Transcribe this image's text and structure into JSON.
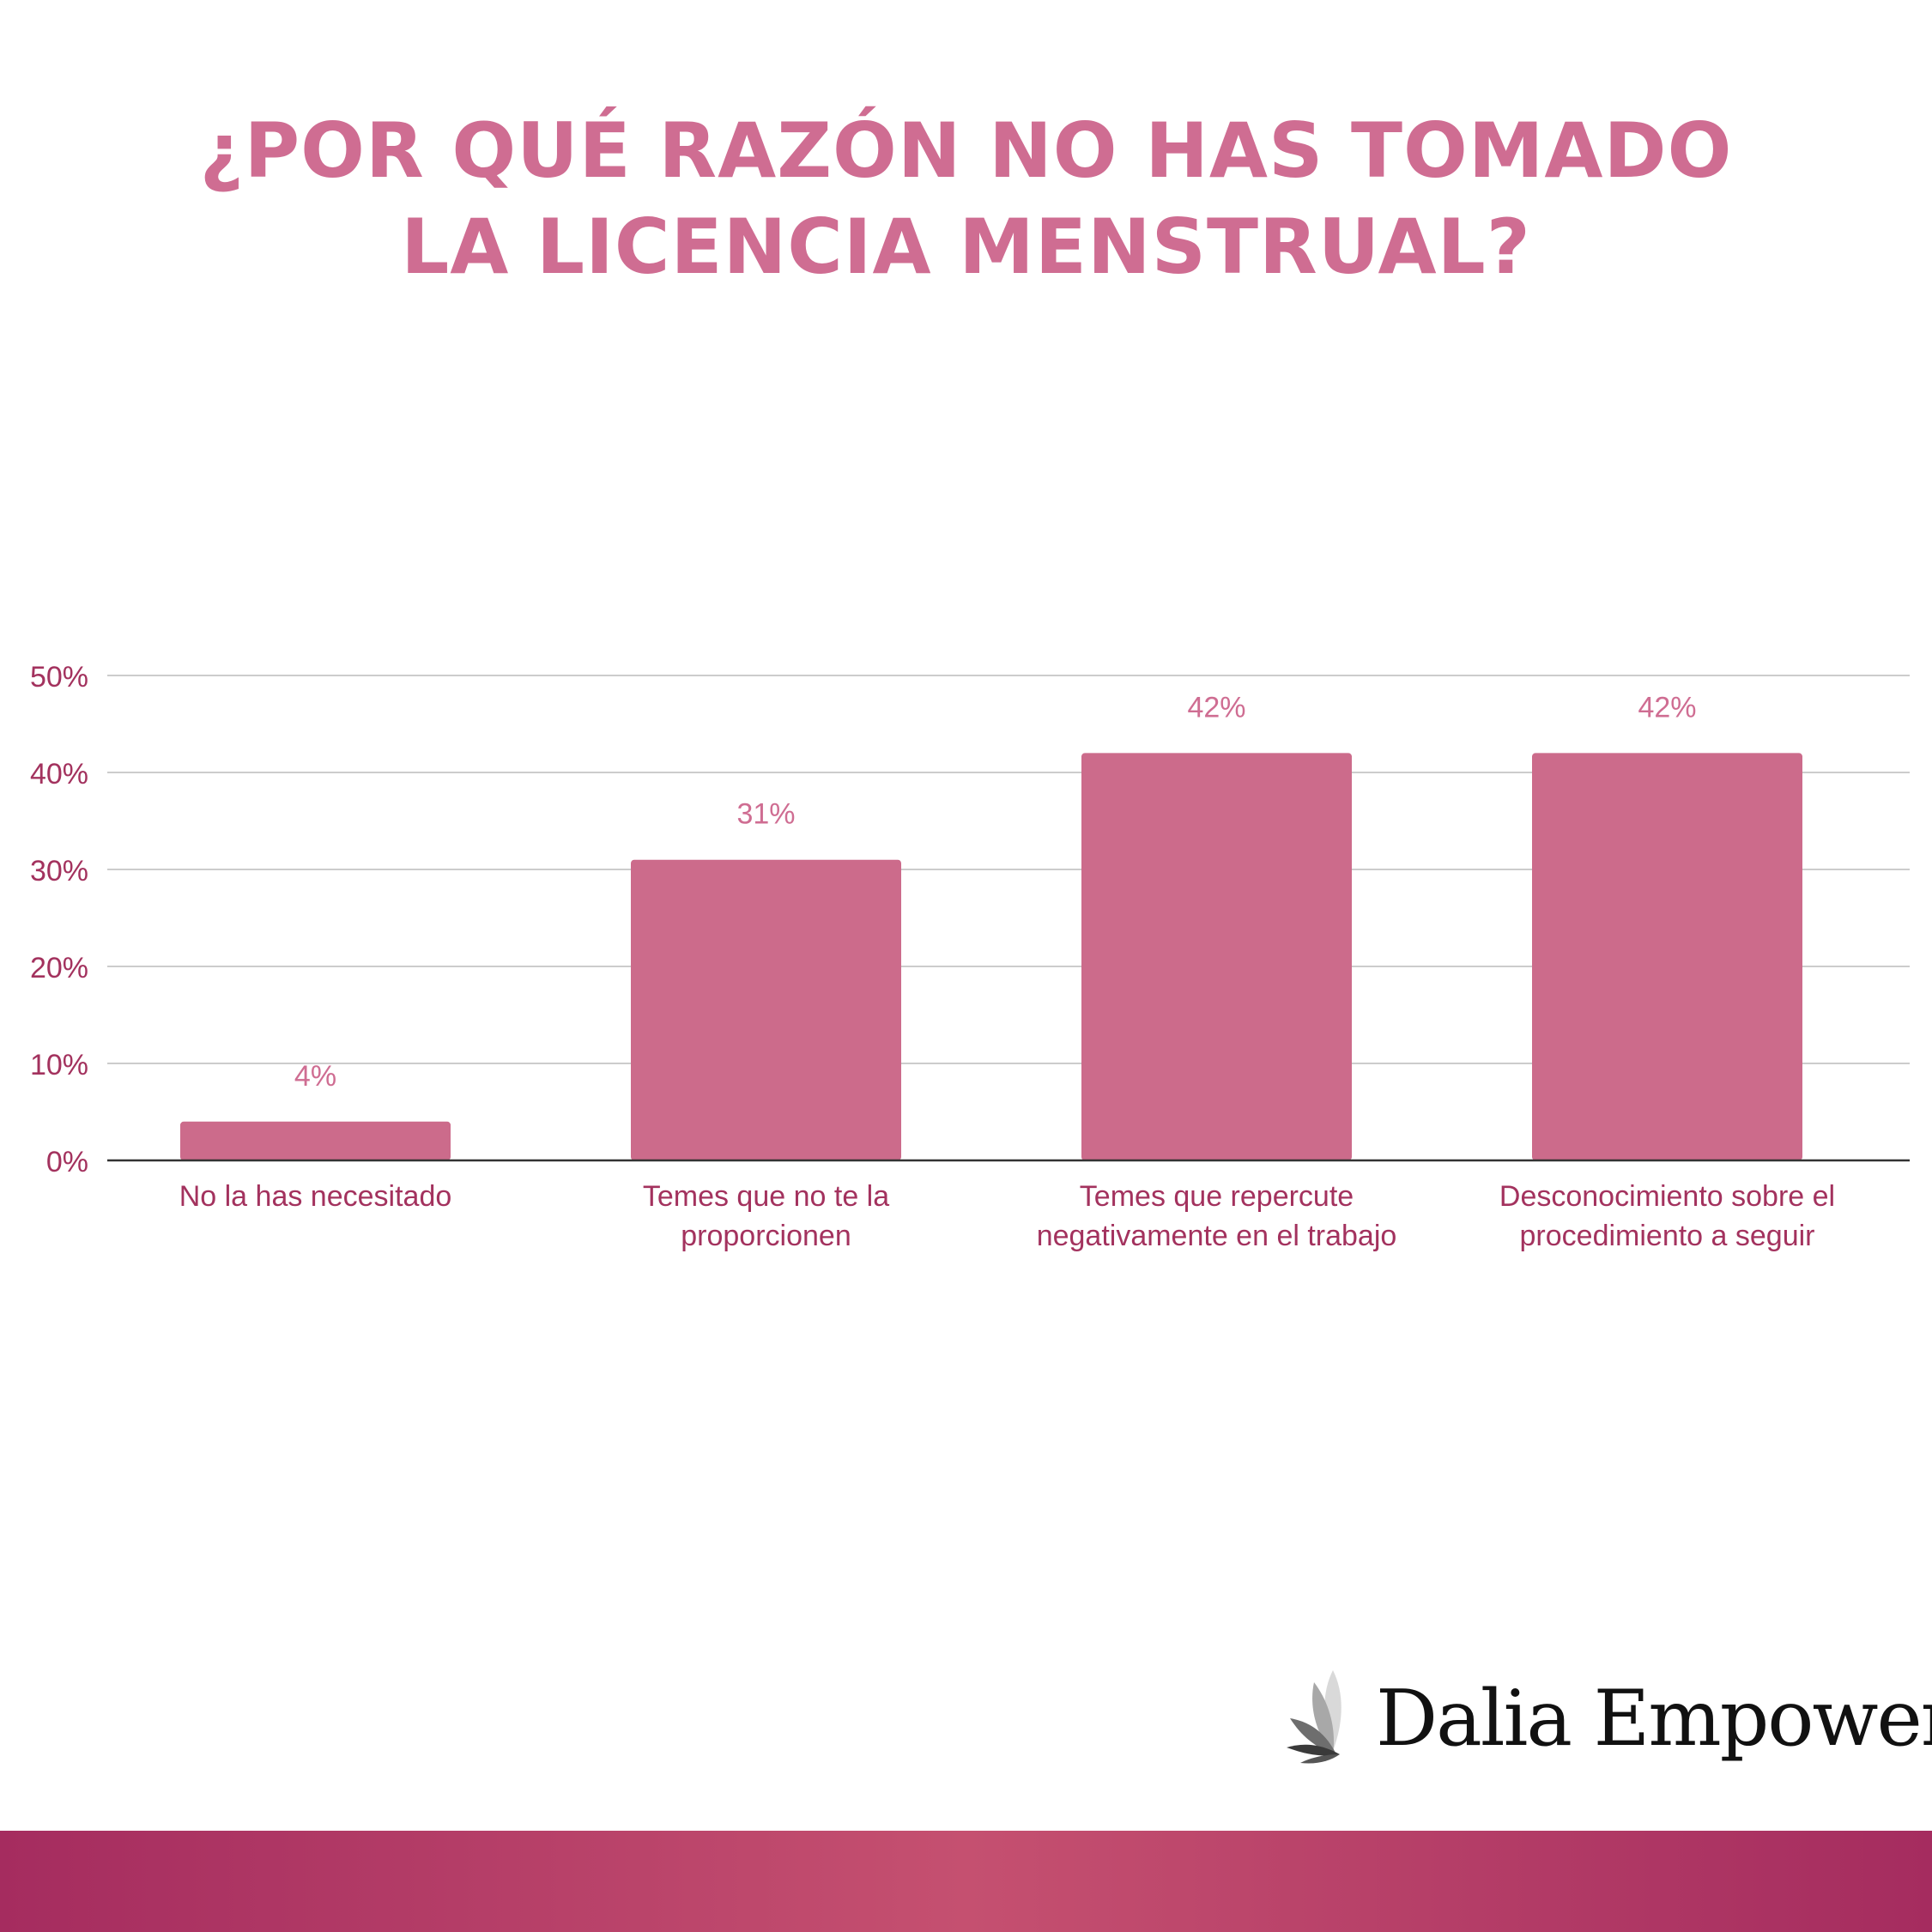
{
  "title_lines": [
    "¿POR QUÉ RAZÓN NO HAS TOMADO",
    "LA LICENCIA MENSTRUAL?"
  ],
  "brand": {
    "name": "Dalia Empower"
  },
  "colors": {
    "title": "#cf6d92",
    "bar": "#cc6b8b",
    "data_label": "#cf6d92",
    "tick_label": "#a3325e",
    "grid": "#cccccc",
    "axis": "#333333",
    "footer_start": "#a52c5f",
    "footer_mid": "#c55070"
  },
  "chart_data": {
    "type": "bar",
    "title": "¿POR QUÉ RAZÓN NO HAS TOMADO LA LICENCIA MENSTRUAL?",
    "categories": [
      [
        "No la has necesitado"
      ],
      [
        "Temes que no te la",
        "proporcionen"
      ],
      [
        "Temes que repercute",
        "negativamente en el trabajo"
      ],
      [
        "Desconocimiento sobre el",
        "procedimiento a seguir"
      ]
    ],
    "values": [
      4,
      31,
      42,
      42
    ],
    "data_labels": [
      "4%",
      "31%",
      "42%",
      "42%"
    ],
    "ylim": [
      0,
      50
    ],
    "yticks": [
      0,
      10,
      20,
      30,
      40,
      50
    ],
    "ytick_labels": [
      "0%",
      "10%",
      "20%",
      "30%",
      "40%",
      "50%"
    ],
    "xlabel": "",
    "ylabel": "",
    "grid": true,
    "legend": "none"
  }
}
